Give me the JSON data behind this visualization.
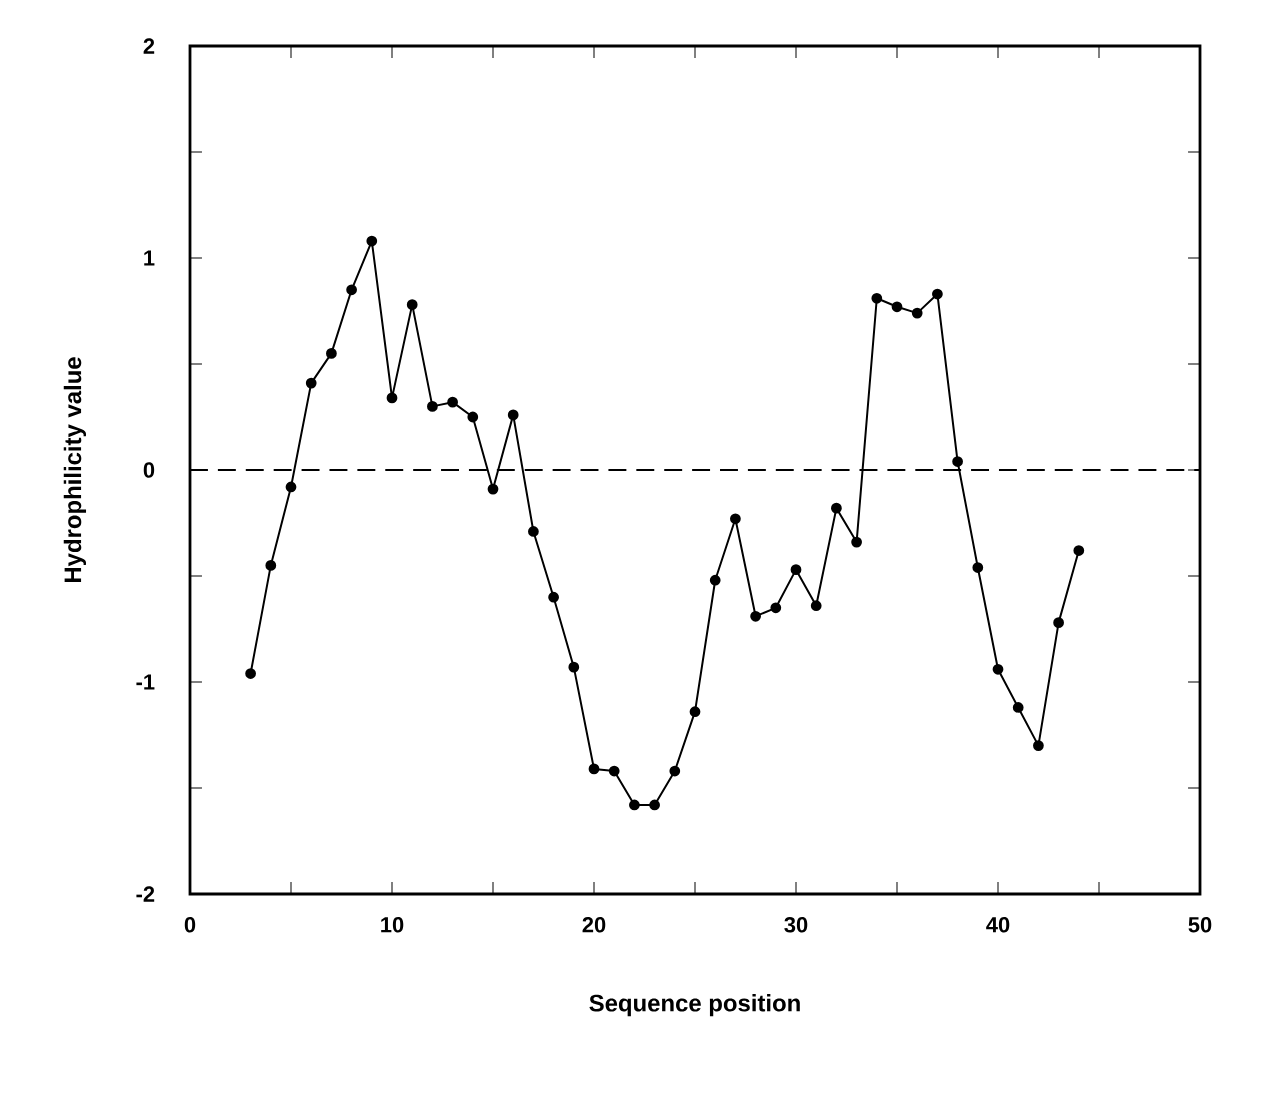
{
  "chart_data": {
    "type": "line",
    "xlabel": "Sequence position",
    "ylabel": "Hydrophilicity value",
    "x": [
      3,
      4,
      5,
      6,
      7,
      8,
      9,
      10,
      11,
      12,
      13,
      14,
      15,
      16,
      17,
      18,
      19,
      20,
      21,
      22,
      23,
      24,
      25,
      26,
      27,
      28,
      29,
      30,
      31,
      32,
      33,
      34,
      35,
      36,
      37,
      38,
      39,
      40,
      41,
      42,
      43,
      44
    ],
    "series": [
      {
        "color": "#000000",
        "values": [
          -0.96,
          -0.45,
          -0.08,
          0.41,
          0.55,
          0.85,
          1.08,
          0.34,
          0.78,
          0.3,
          0.32,
          0.25,
          -0.09,
          0.26,
          -0.29,
          -0.6,
          -0.93,
          -1.41,
          -1.42,
          -1.58,
          -1.58,
          -1.42,
          -1.14,
          -0.52,
          -0.23,
          -0.69,
          -0.65,
          -0.47,
          -0.64,
          -0.18,
          -0.34,
          0.81,
          0.77,
          0.74,
          0.83,
          0.04,
          -0.46,
          -0.94,
          -1.12,
          -1.3,
          -0.72,
          -0.38
        ]
      }
    ],
    "xlim": [
      0,
      50
    ],
    "ylim": [
      -2,
      2
    ],
    "xticks": [
      0,
      {
        "value": 5,
        "label": null
      },
      10,
      {
        "value": 15,
        "label": null
      },
      20,
      {
        "value": 25,
        "label": null
      },
      30,
      {
        "value": 35,
        "label": null
      },
      40,
      {
        "value": 45,
        "label": null
      },
      50
    ],
    "yticks": [
      -2,
      {
        "value": -1.5,
        "label": null
      },
      -1,
      {
        "value": -0.5,
        "label": null
      },
      0,
      {
        "value": 0.5,
        "label": null
      },
      1,
      {
        "value": 1.5,
        "label": null
      },
      2
    ],
    "ref_lines": [
      {
        "axis": "y",
        "value": 0,
        "line_style": "dashed",
        "color": "#000000"
      }
    ],
    "marker": "circle",
    "line_style": "solid"
  }
}
